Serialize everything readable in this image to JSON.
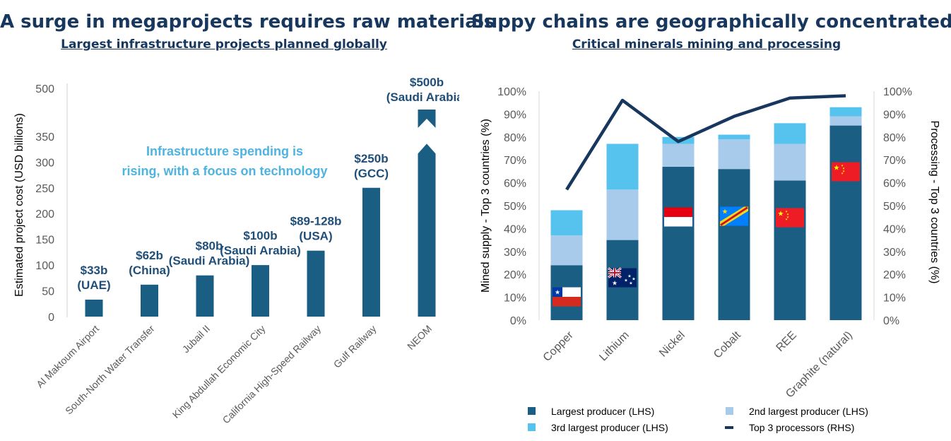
{
  "left_panel": {
    "title": "A surge in megaprojects requires raw materials",
    "subtitle": "Largest infrastructure projects planned globally"
  },
  "right_panel": {
    "title": "Suppy chains are geographically concentrated",
    "subtitle": "Critical minerals mining and processing"
  },
  "chart_data": [
    {
      "type": "bar",
      "ylabel": "Estimated project cost (USD billions)",
      "xlabel": "",
      "y_ticks": [
        "0",
        "50",
        "100",
        "150",
        "200",
        "250",
        "300",
        "350",
        "500"
      ],
      "axis_break": "between 350 and 500",
      "annotation": "Infrastructure spending is rising, with a focus on technology",
      "bar_color": "#1b5e84",
      "label_color": "#1f4e79",
      "annotation_color": "#4fb3e0",
      "categories": [
        "Al Maktoum Airport",
        "South-North Water Transfer",
        "Jubail II",
        "King Abdullah Economic City",
        "California High-Speed Railway",
        "Gulf Railway",
        "NEOM"
      ],
      "values": [
        33,
        62,
        80,
        100,
        128,
        250,
        500
      ],
      "data_labels": [
        [
          "$33b",
          "(UAE)"
        ],
        [
          "$62b",
          "(China)"
        ],
        [
          "$80b",
          "(Saudi Arabia)"
        ],
        [
          "$100b",
          "(Saudi Arabia)"
        ],
        [
          "$89-128b",
          "(USA)"
        ],
        [
          "$250b",
          "(GCC)"
        ],
        [
          "$500b",
          "(Saudi Arabia)"
        ]
      ]
    },
    {
      "type": "bar",
      "stacked": true,
      "secondary_line": true,
      "ylabel": "Mined supply - Top 3 countries (%)",
      "y2label": "Processing - Top 3 countries (%)",
      "ylim": [
        0,
        100
      ],
      "y_ticks": [
        "0%",
        "10%",
        "20%",
        "30%",
        "40%",
        "50%",
        "60%",
        "70%",
        "80%",
        "90%",
        "100%"
      ],
      "categories": [
        "Copper",
        "Lithium",
        "Nickel",
        "Cobalt",
        "REE",
        "Graphite (natural)"
      ],
      "series": [
        {
          "name": "Largest producer (LHS)",
          "color": "#1b5e84",
          "values": [
            24,
            35,
            67,
            66,
            61,
            85
          ]
        },
        {
          "name": "2nd largest producer (LHS)",
          "color": "#a9cbeb",
          "values": [
            13,
            22,
            10,
            13,
            16,
            4
          ]
        },
        {
          "name": "3rd largest producer (LHS)",
          "color": "#55c3ee",
          "values": [
            11,
            20,
            3,
            2,
            9,
            4
          ]
        }
      ],
      "line": {
        "name": "Top 3 processors (RHS)",
        "color": "#17375e",
        "values": [
          57,
          96,
          78,
          89,
          97,
          98
        ]
      },
      "flags": [
        "Chile",
        "Australia",
        "Indonesia",
        "DR Congo",
        "China",
        "China"
      ]
    }
  ]
}
